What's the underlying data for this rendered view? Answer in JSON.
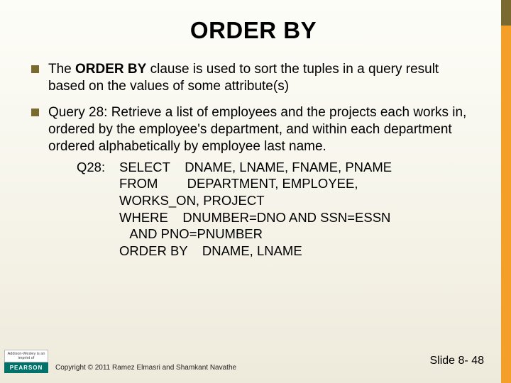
{
  "title": "ORDER BY",
  "bullets": [
    {
      "pre": "The ",
      "bold": "ORDER BY",
      "post": " clause is used to sort the tuples in a query result based on the values of some attribute(s)"
    },
    {
      "pre": "",
      "bold": "",
      "post": "Query 28: Retrieve a list of employees and the projects each works in, ordered by the employee's department, and within each department ordered alphabetically by employee last name."
    }
  ],
  "query": {
    "label": "Q28:",
    "lines": [
      "SELECT    DNAME, LNAME, FNAME, PNAME",
      "FROM        DEPARTMENT, EMPLOYEE,",
      "WORKS_ON, PROJECT",
      "WHERE    DNUMBER=DNO AND SSN=ESSN",
      "   AND PNO=PNUMBER",
      "ORDER BY    DNAME, LNAME"
    ]
  },
  "footer": {
    "publisher_top": "Addison-Wesley is an imprint of",
    "publisher_bottom": "PEARSON",
    "copyright": "Copyright © 2011 Ramez Elmasri and Shamkant Navathe",
    "slide_number": "Slide 8- 48"
  },
  "colors": {
    "accent_dark": "#7a6a2f",
    "accent_orange": "#f4a028",
    "pearson_teal": "#00726a",
    "bg_top": "#fdfdf8",
    "bg_bottom": "#eeeadb"
  }
}
